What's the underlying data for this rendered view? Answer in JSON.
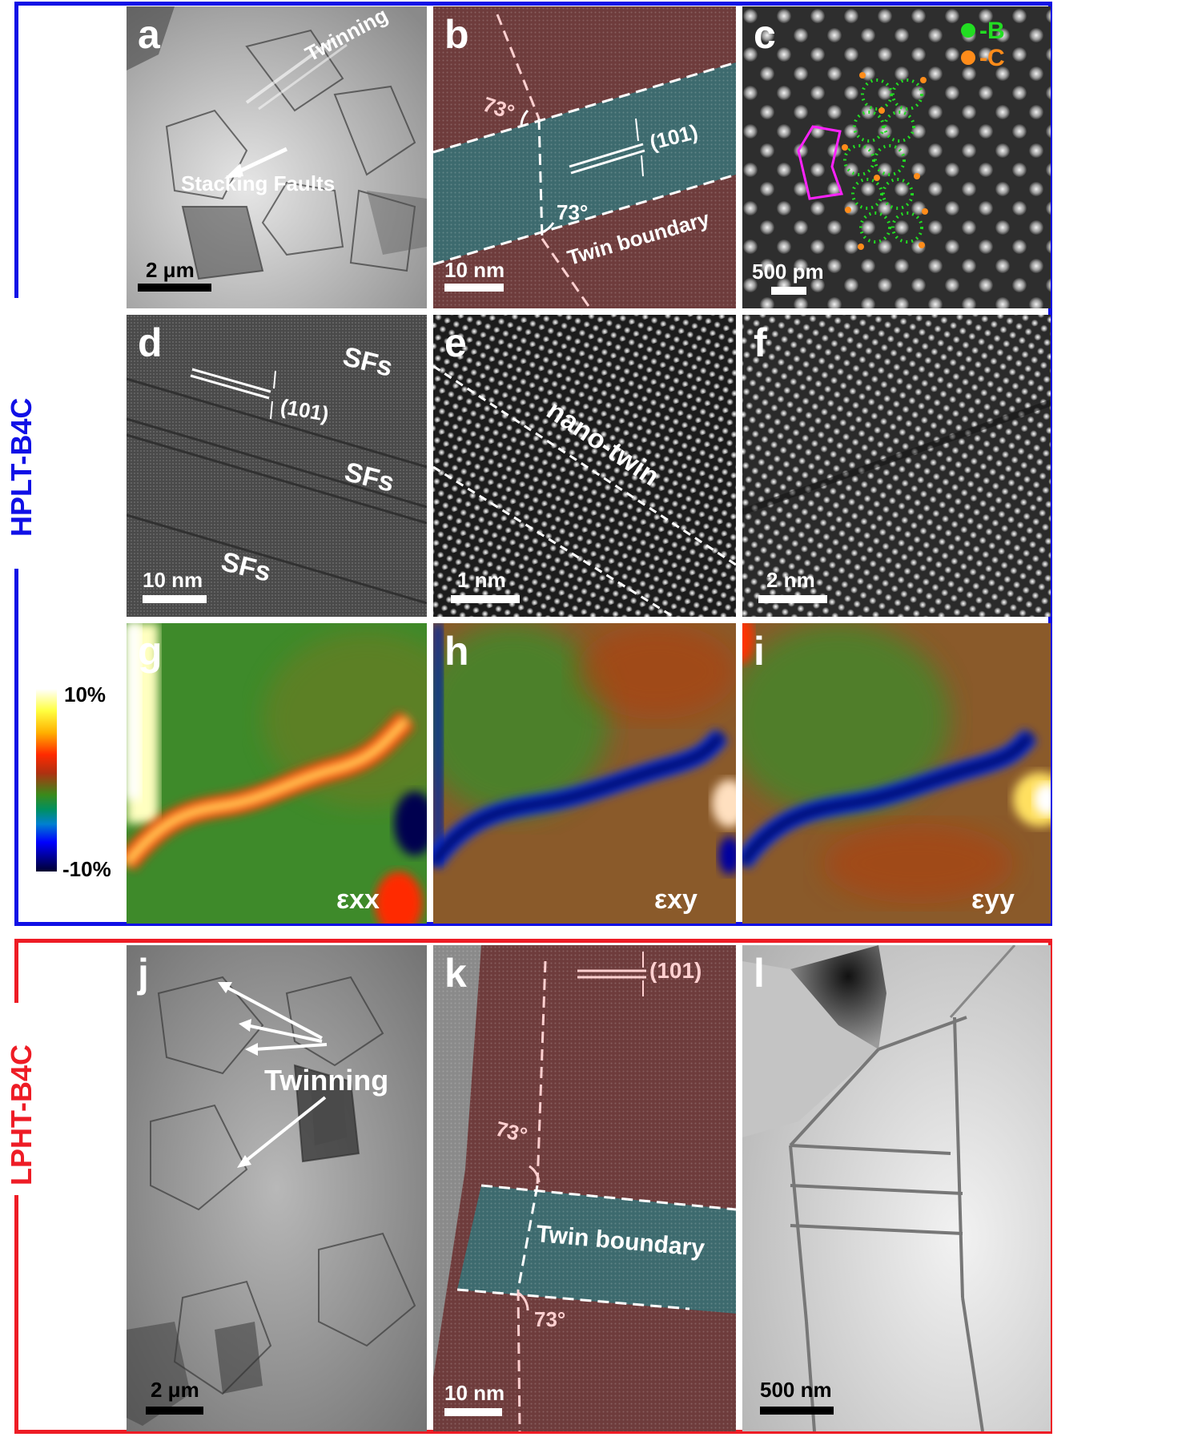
{
  "groups": {
    "top": {
      "label": "HPLT-B4C",
      "color": "#1010e6"
    },
    "bottom": {
      "label": "LPHT-B4C",
      "color": "#ee1c25"
    }
  },
  "panels": {
    "a": {
      "label": "a",
      "twinning": "Twinning",
      "stacking": "Stacking Faults",
      "scale": "2 μm"
    },
    "b": {
      "label": "b",
      "angle1": "73°",
      "angle2": "73°",
      "plane": "(101)",
      "boundary": "Twin boundary",
      "scale": "10 nm"
    },
    "c": {
      "label": "c",
      "legend_b": "-B",
      "legend_c": "-C",
      "scale": "500 pm",
      "color_b": "#22dd22",
      "color_c": "#ff8c1a"
    },
    "d": {
      "label": "d",
      "sf1": "SFs",
      "sf2": "SFs",
      "sf3": "SFs",
      "plane": "(101)",
      "scale": "10 nm"
    },
    "e": {
      "label": "e",
      "twin": "nano-twin",
      "scale": "1 nm"
    },
    "f": {
      "label": "f",
      "scale": "2 nm"
    },
    "g": {
      "label": "g",
      "strain": "εxx"
    },
    "h": {
      "label": "h",
      "strain": "εxy"
    },
    "i": {
      "label": "i",
      "strain": "εyy"
    },
    "j": {
      "label": "j",
      "twinning": "Twinning",
      "scale": "2 μm"
    },
    "k": {
      "label": "k",
      "angle1": "73°",
      "angle2": "73°",
      "plane": "(101)",
      "boundary": "Twin boundary",
      "scale": "10 nm"
    },
    "l": {
      "label": "l",
      "scale": "500 nm"
    }
  },
  "colorbar": {
    "max": "10%",
    "min": "-10%"
  }
}
